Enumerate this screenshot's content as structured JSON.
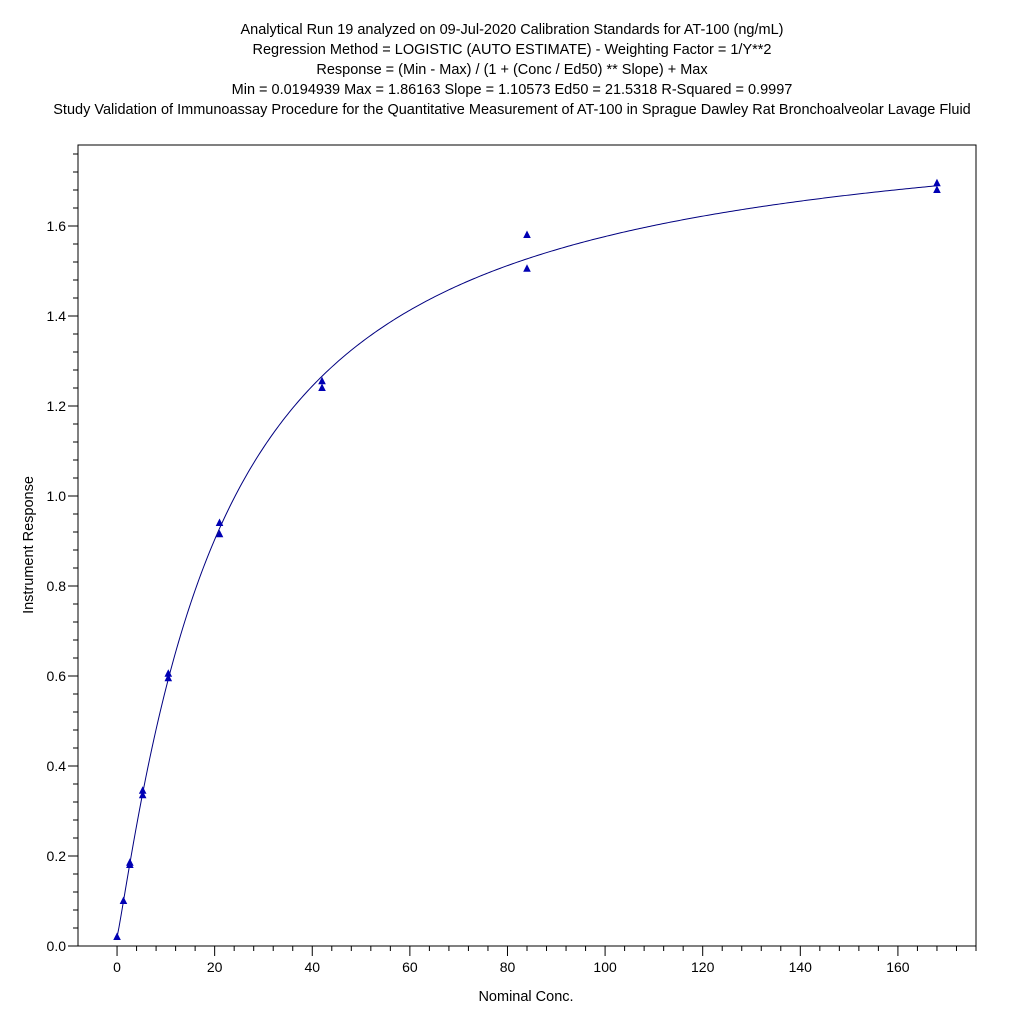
{
  "chart_data": {
    "type": "scatter",
    "title_lines": [
      "Analytical Run 19 analyzed on 09-Jul-2020 Calibration Standards for AT-100 (ng/mL)",
      "Regression Method = LOGISTIC (AUTO ESTIMATE) - Weighting Factor = 1/Y**2",
      "Response = (Min - Max) / (1 + (Conc / Ed50) ** Slope) + Max",
      "Min = 0.0194939 Max = 1.86163 Slope = 1.10573 Ed50 = 21.5318 R-Squared = 0.9997",
      "Study Validation of Immunoassay Procedure for the Quantitative Measurement of AT-100 in Sprague Dawley Rat Bronchoalveolar Lavage Fluid"
    ],
    "xlabel": "Nominal Conc.",
    "ylabel": "Instrument Response",
    "xlim": [
      -8,
      176
    ],
    "ylim": [
      0,
      1.78
    ],
    "x_ticks": [
      0,
      20,
      40,
      60,
      80,
      100,
      120,
      140,
      160
    ],
    "y_ticks": [
      0.0,
      0.2,
      0.4,
      0.6,
      0.8,
      1.0,
      1.2,
      1.4,
      1.6
    ],
    "x_tick_labels": [
      "0",
      "20",
      "40",
      "60",
      "80",
      "100",
      "120",
      "140",
      "160"
    ],
    "y_tick_labels": [
      "0.0",
      "0.2",
      "0.4",
      "0.6",
      "0.8",
      "1.0",
      "1.2",
      "1.4",
      "1.6"
    ],
    "x_minor_step": 4,
    "y_minor_step": 0.04,
    "grid": false,
    "marker_color": "#0000b4",
    "curve_color": "#000080",
    "fit": {
      "model": "4PL",
      "min": 0.0194939,
      "max": 1.86163,
      "slope": 1.10573,
      "ed50": 21.5318
    },
    "series": [
      {
        "points": [
          [
            0,
            0.02
          ],
          [
            1.3125,
            0.1
          ],
          [
            2.625,
            0.18
          ],
          [
            2.625,
            0.185
          ],
          [
            5.25,
            0.335
          ],
          [
            5.25,
            0.345
          ],
          [
            10.5,
            0.595
          ],
          [
            10.5,
            0.605
          ],
          [
            21,
            0.915
          ],
          [
            21,
            0.94
          ],
          [
            42,
            1.24
          ],
          [
            42,
            1.255
          ],
          [
            84,
            1.505
          ],
          [
            84,
            1.58
          ],
          [
            168,
            1.68
          ],
          [
            168,
            1.695
          ]
        ]
      }
    ]
  }
}
